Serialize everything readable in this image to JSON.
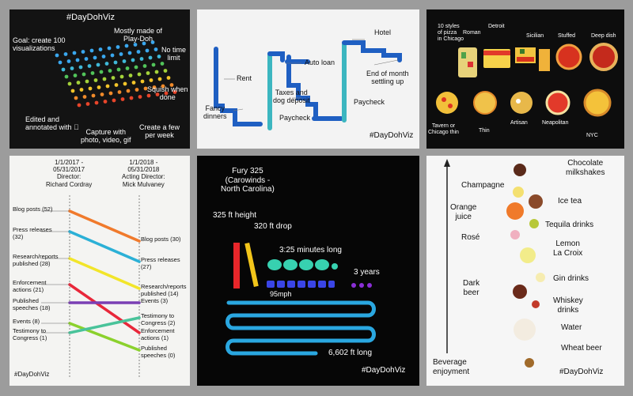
{
  "hashtag": "#DayDohViz",
  "panel1": {
    "goal": "Goal: create 100\nvisualizations",
    "material": "Mostly made of\nPlay-Doh",
    "time": "No time\nlimit",
    "squish": "Squish when\ndone",
    "edited": "Edited and\nannotated with ",
    "capture": "Capture with\nphoto, video, gif",
    "create": "Create a few\nper week"
  },
  "panel2": {
    "hotel": "Hotel",
    "auto_loan": "Auto loan",
    "rent": "Rent",
    "taxes": "Taxes and\ndog deposit",
    "end_month": "End of month\nsettling up",
    "fancy": "Fancy\ndinners",
    "paycheck1": "Paycheck",
    "paycheck2": "Paycheck"
  },
  "panel3": {
    "title": "10 styles\nof pizza\nin Chicago",
    "roman": "Roman",
    "detroit": "Detroit",
    "sicilian": "Sicilian",
    "stuffed": "Stuffed",
    "deep": "Deep dish",
    "tavern": "Tavern or\nChicago thin",
    "thin": "Thin",
    "artisan": "Artisan",
    "neapolitan": "Neapolitan",
    "nyc": "NYC"
  },
  "panel4": {
    "left_header": "1/1/2017 -\n05/31/2017\nDirector:\nRichard Cordray",
    "right_header": "1/1/2018 -\n05/31/2018\nActing Director:\nMick Mulvaney",
    "left_labels": [
      "Blog posts (52)",
      "Press releases\n(32)",
      "Research/reports\npublished (28)",
      "Enforcement\nactions (21)",
      "Published\nspeeches (18)",
      "Events (8)",
      "Testimony to\nCongress (1)"
    ],
    "right_labels": [
      "Blog posts (30)",
      "Press releases\n(27)",
      "Research/reports\npublished (14)",
      "Events (3)",
      "Testimony to\nCongress (2)",
      "Enforcement\nactions (1)",
      "Published\nspeeches (0)"
    ],
    "colors": [
      "#f07a2c",
      "#2bb0d6",
      "#f2e52a",
      "#e8273a",
      "#7a3fb4",
      "#8bd12d",
      "#49c39a"
    ]
  },
  "panel5": {
    "title": "Fury 325\n(Carowinds -\nNorth Carolina)",
    "height": "325 ft height",
    "drop": "320 ft drop",
    "duration": "3:25 minutes long",
    "years": "3 years",
    "speed": "95mph",
    "length": "6,602 ft long"
  },
  "panel6": {
    "axis": "Beverage\nenjoyment",
    "items": [
      "Chocolate\nmilkshakes",
      "Champagne",
      "Ice tea",
      "Orange\njuice",
      "Tequila drinks",
      "Rosé",
      "Lemon\nLa Croix",
      "Dark\nbeer",
      "Gin drinks",
      "Whiskey\ndrinks",
      "Water",
      "Wheat beer"
    ]
  }
}
